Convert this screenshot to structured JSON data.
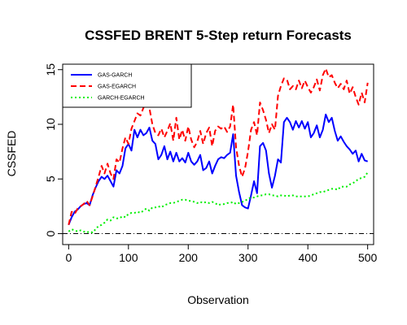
{
  "chart_data": {
    "type": "line",
    "title": "CSSFED BRENT 5-Step return Forecasts",
    "xlabel": "Observation",
    "ylabel": "CSSFED",
    "xlim": [
      -10,
      510
    ],
    "ylim": [
      -1,
      15.5
    ],
    "x_ticks": [
      0,
      100,
      200,
      300,
      400,
      500
    ],
    "y_ticks": [
      0,
      5,
      10,
      15
    ],
    "grid": false,
    "legend": {
      "position": "top-left"
    },
    "reference_line": {
      "y": 0,
      "style": "dash-dot",
      "color": "#000000"
    },
    "series": [
      {
        "name": "GAS-GARCH",
        "color": "#0000ff",
        "style": "solid",
        "x": [
          0,
          5,
          10,
          15,
          20,
          25,
          30,
          35,
          40,
          45,
          50,
          55,
          60,
          65,
          70,
          75,
          80,
          85,
          90,
          95,
          100,
          105,
          110,
          115,
          120,
          125,
          130,
          135,
          140,
          145,
          150,
          155,
          160,
          165,
          170,
          175,
          180,
          185,
          190,
          195,
          200,
          205,
          210,
          215,
          220,
          225,
          230,
          235,
          240,
          245,
          250,
          255,
          260,
          265,
          270,
          275,
          280,
          285,
          290,
          295,
          300,
          305,
          310,
          315,
          320,
          325,
          330,
          335,
          340,
          345,
          350,
          355,
          360,
          365,
          370,
          375,
          380,
          385,
          390,
          395,
          400,
          405,
          410,
          415,
          420,
          425,
          430,
          435,
          440,
          445,
          450,
          455,
          460,
          465,
          470,
          475,
          480,
          485,
          490,
          495,
          500
        ],
        "values": [
          0.8,
          1.5,
          2.0,
          2.2,
          2.5,
          2.7,
          2.8,
          2.6,
          3.5,
          4.2,
          4.8,
          5.2,
          5.0,
          5.3,
          4.8,
          4.3,
          5.8,
          5.5,
          6.2,
          7.8,
          8.2,
          7.6,
          9.5,
          8.8,
          9.5,
          9.0,
          9.2,
          9.7,
          8.5,
          8.2,
          6.8,
          7.2,
          8.0,
          6.8,
          7.5,
          6.6,
          7.4,
          6.6,
          6.9,
          6.5,
          7.4,
          6.6,
          6.3,
          6.6,
          7.2,
          5.8,
          6.0,
          6.6,
          5.5,
          6.2,
          6.8,
          7.0,
          6.9,
          7.2,
          7.4,
          9.1,
          5.3,
          3.8,
          2.6,
          2.4,
          2.3,
          3.5,
          4.8,
          3.7,
          8.0,
          8.3,
          7.6,
          5.5,
          4.2,
          5.3,
          6.8,
          6.5,
          10.2,
          10.6,
          10.2,
          9.5,
          10.3,
          9.7,
          10.3,
          9.6,
          10.2,
          8.8,
          9.2,
          9.9,
          8.8,
          9.5,
          10.9,
          10.2,
          10.6,
          9.4,
          8.5,
          8.9,
          8.4,
          8.0,
          7.7,
          7.3,
          7.6,
          6.6,
          7.3,
          6.7,
          6.6
        ]
      },
      {
        "name": "GAS-EGARCH",
        "color": "#ff0000",
        "style": "dashed",
        "x": [
          0,
          5,
          10,
          15,
          20,
          25,
          30,
          35,
          40,
          45,
          50,
          55,
          60,
          65,
          70,
          75,
          80,
          85,
          90,
          95,
          100,
          105,
          110,
          115,
          120,
          125,
          130,
          135,
          140,
          145,
          150,
          155,
          160,
          165,
          170,
          175,
          180,
          185,
          190,
          195,
          200,
          205,
          210,
          215,
          220,
          225,
          230,
          235,
          240,
          245,
          250,
          255,
          260,
          265,
          270,
          275,
          280,
          285,
          290,
          295,
          300,
          305,
          310,
          315,
          320,
          325,
          330,
          335,
          340,
          345,
          350,
          355,
          360,
          365,
          370,
          375,
          380,
          385,
          390,
          395,
          400,
          405,
          410,
          415,
          420,
          425,
          430,
          435,
          440,
          445,
          450,
          455,
          460,
          465,
          470,
          475,
          480,
          485,
          490,
          495,
          500
        ],
        "values": [
          0.8,
          2.0,
          1.8,
          2.3,
          2.5,
          2.7,
          3.0,
          2.6,
          3.4,
          4.3,
          5.2,
          6.2,
          5.5,
          6.4,
          5.5,
          5.0,
          6.8,
          6.5,
          7.8,
          8.8,
          8.2,
          9.6,
          10.3,
          11.0,
          10.8,
          11.5,
          12.0,
          11.5,
          10.0,
          9.2,
          9.0,
          9.6,
          8.8,
          9.4,
          10.1,
          8.5,
          10.6,
          8.6,
          9.5,
          8.5,
          9.8,
          8.6,
          7.9,
          8.4,
          9.4,
          8.2,
          9.2,
          9.7,
          8.0,
          9.4,
          9.8,
          9.6,
          9.8,
          9.3,
          9.8,
          11.8,
          7.9,
          6.2,
          5.2,
          6.0,
          7.5,
          9.5,
          10.2,
          9.0,
          12.0,
          11.3,
          10.4,
          9.2,
          10.0,
          9.5,
          12.6,
          13.5,
          14.2,
          14.1,
          13.2,
          13.5,
          13.2,
          14.0,
          13.3,
          14.0,
          13.4,
          12.9,
          13.4,
          14.1,
          13.1,
          14.5,
          15.1,
          14.3,
          14.5,
          13.8,
          13.3,
          13.7,
          13.2,
          14.0,
          12.8,
          13.4,
          12.5,
          11.8,
          12.9,
          12.0,
          13.8
        ]
      },
      {
        "name": "GARCH-EGARCH",
        "color": "#00ee00",
        "style": "dotted",
        "x": [
          0,
          5,
          10,
          15,
          20,
          25,
          30,
          35,
          40,
          45,
          50,
          55,
          60,
          65,
          70,
          75,
          80,
          85,
          90,
          95,
          100,
          105,
          110,
          115,
          120,
          125,
          130,
          135,
          140,
          145,
          150,
          155,
          160,
          165,
          170,
          175,
          180,
          185,
          190,
          195,
          200,
          205,
          210,
          215,
          220,
          225,
          230,
          235,
          240,
          245,
          250,
          255,
          260,
          265,
          270,
          275,
          280,
          285,
          290,
          295,
          300,
          305,
          310,
          315,
          320,
          325,
          330,
          335,
          340,
          345,
          350,
          355,
          360,
          365,
          370,
          375,
          380,
          385,
          390,
          395,
          400,
          405,
          410,
          415,
          420,
          425,
          430,
          435,
          440,
          445,
          450,
          455,
          460,
          465,
          470,
          475,
          480,
          485,
          490,
          495,
          500
        ],
        "values": [
          0.2,
          0.4,
          0.3,
          0.2,
          0.3,
          0.2,
          0.1,
          0.2,
          0.1,
          0.4,
          0.7,
          0.8,
          1.0,
          1.3,
          1.2,
          1.5,
          1.4,
          1.4,
          1.6,
          1.5,
          1.8,
          1.9,
          1.9,
          2.0,
          1.9,
          2.1,
          2.3,
          2.1,
          2.4,
          2.4,
          2.5,
          2.4,
          2.6,
          2.7,
          2.8,
          2.8,
          2.9,
          3.0,
          3.1,
          3.1,
          3.0,
          3.0,
          2.9,
          2.8,
          2.9,
          2.8,
          2.9,
          2.8,
          2.9,
          2.8,
          2.6,
          2.7,
          2.7,
          2.8,
          2.8,
          2.9,
          2.7,
          2.8,
          2.9,
          3.0,
          3.2,
          3.3,
          3.3,
          3.4,
          3.5,
          3.5,
          3.6,
          3.6,
          3.5,
          3.5,
          3.4,
          3.5,
          3.5,
          3.4,
          3.5,
          3.5,
          3.4,
          3.4,
          3.4,
          3.4,
          3.4,
          3.5,
          3.6,
          3.7,
          3.8,
          3.8,
          3.9,
          4.0,
          4.1,
          4.1,
          4.0,
          4.3,
          4.3,
          4.3,
          4.5,
          4.6,
          4.8,
          5.0,
          5.1,
          5.2,
          5.6
        ]
      }
    ]
  }
}
